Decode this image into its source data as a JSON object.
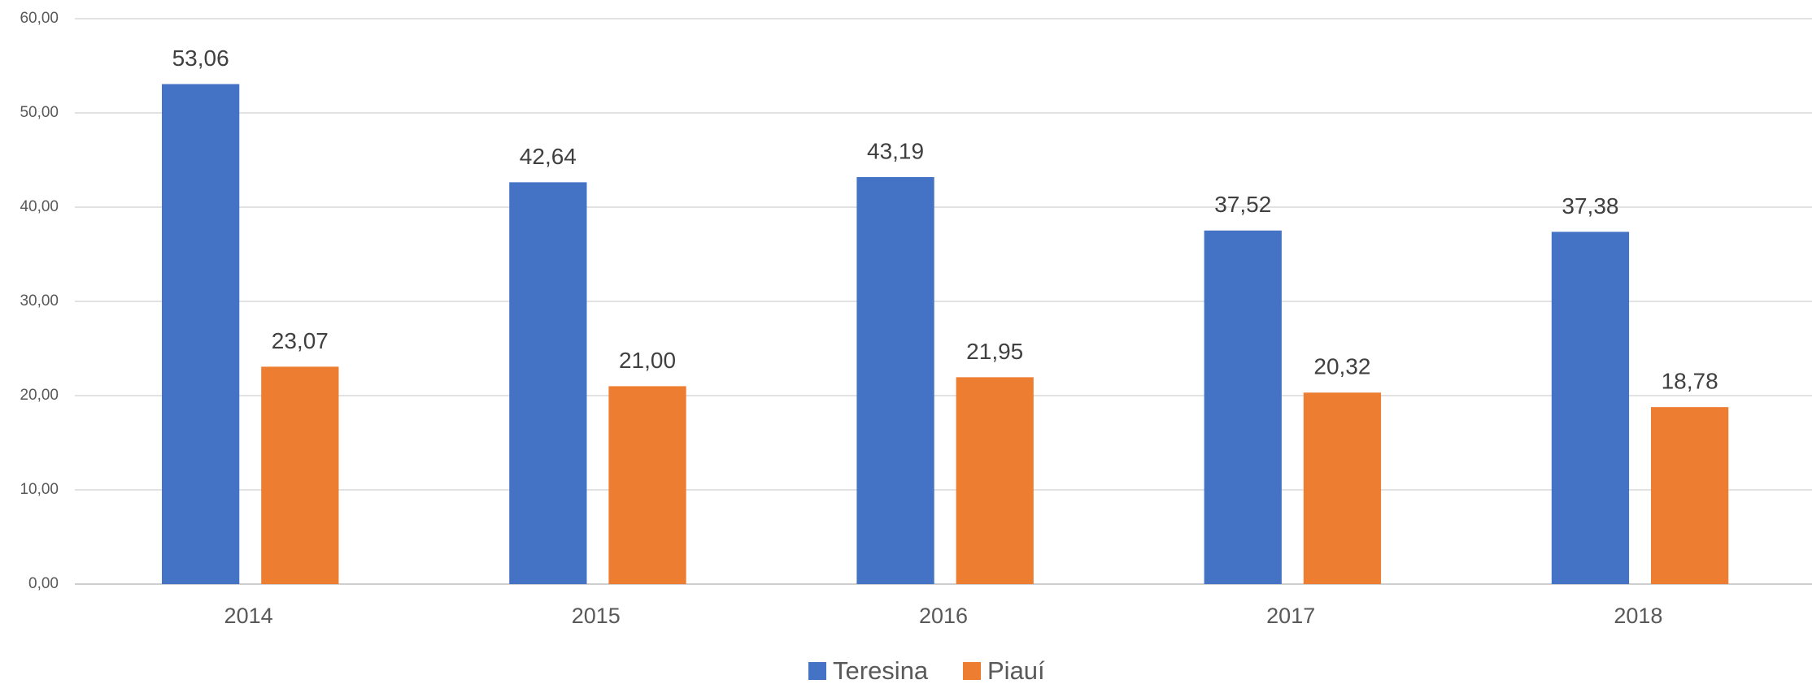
{
  "chart_data": {
    "type": "bar",
    "categories": [
      "2014",
      "2015",
      "2016",
      "2017",
      "2018"
    ],
    "series": [
      {
        "name": "Teresina",
        "color": "#4472c4",
        "values": [
          53.06,
          42.64,
          43.19,
          37.52,
          37.38
        ],
        "value_labels": [
          "53,06",
          "42,64",
          "43,19",
          "37,52",
          "37,38"
        ]
      },
      {
        "name": "Piauí",
        "color": "#ed7d31",
        "values": [
          23.07,
          21.0,
          21.95,
          20.32,
          18.78
        ],
        "value_labels": [
          "23,07",
          "21,00",
          "21,95",
          "20,32",
          "18,78"
        ]
      }
    ],
    "ylim": [
      0,
      60
    ],
    "yticks": [
      {
        "value": 0,
        "label": "0,00"
      },
      {
        "value": 10,
        "label": "10,00"
      },
      {
        "value": 20,
        "label": "20,00"
      },
      {
        "value": 30,
        "label": "30,00"
      },
      {
        "value": 40,
        "label": "40,00"
      },
      {
        "value": 50,
        "label": "50,00"
      },
      {
        "value": 60,
        "label": "60,00"
      }
    ],
    "grid": true,
    "legend": "bottom"
  }
}
